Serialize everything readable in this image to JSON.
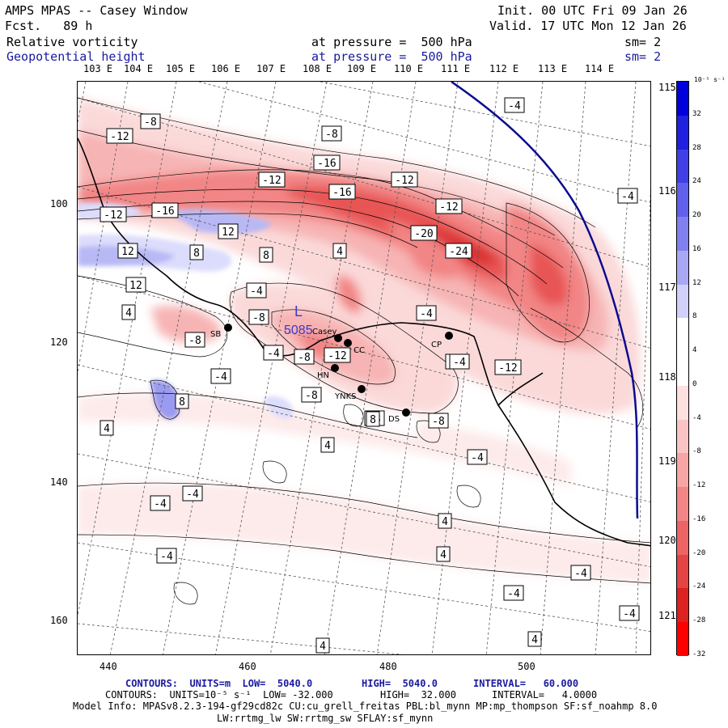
{
  "header": {
    "title": "AMPS MPAS -- Casey Window",
    "fcst": "Fcst.   89 h",
    "init": "Init. 00 UTC Fri 09 Jan 26",
    "valid": "Valid. 17 UTC Mon 12 Jan 26",
    "field1_name": "Relative vorticity",
    "field1_level": "at pressure =  500 hPa",
    "field1_sm": "sm= 2",
    "field2_name": "Geopotential height",
    "field2_level": "at pressure =  500 hPa",
    "field2_sm": "sm= 2"
  },
  "top_lon_labels": [
    "103 E",
    "104 E",
    "105 E",
    "106 E",
    "107 E",
    "108 E",
    "109 E",
    "110 E",
    "111 E",
    "112 E",
    "113 E",
    "114 E"
  ],
  "right_lon_labels": [
    "115 E",
    "116 E",
    "117 E",
    "118 E",
    "119 E",
    "120 E",
    "121 E"
  ],
  "y_axis": [
    "100",
    "120",
    "140",
    "160"
  ],
  "x_axis": [
    "440",
    "460",
    "480",
    "500"
  ],
  "colorbar": {
    "unit": "10⁻⁵ s⁻¹",
    "labels": [
      "32",
      "28",
      "24",
      "20",
      "16",
      "12",
      "8",
      "4",
      "0",
      "-4",
      "-8",
      "-12",
      "-16",
      "-20",
      "-24",
      "-28",
      "-32"
    ]
  },
  "contour_labels": [
    {
      "t": "-8"
    },
    {
      "t": "-12"
    },
    {
      "t": "-8"
    },
    {
      "t": "-16"
    },
    {
      "t": "-12"
    },
    {
      "t": "-16"
    },
    {
      "t": "-12"
    },
    {
      "t": "-12"
    },
    {
      "t": "-16"
    },
    {
      "t": "-12"
    },
    {
      "t": "-20"
    },
    {
      "t": "-24"
    },
    {
      "t": "-4"
    },
    {
      "t": "-4"
    },
    {
      "t": "12"
    },
    {
      "t": "12"
    },
    {
      "t": "8"
    },
    {
      "t": "8"
    },
    {
      "t": "4"
    },
    {
      "t": "12"
    },
    {
      "t": "-8"
    },
    {
      "t": "-4"
    },
    {
      "t": "-8"
    },
    {
      "t": "-8"
    },
    {
      "t": "-4"
    },
    {
      "t": "-12"
    },
    {
      "t": "-4"
    },
    {
      "t": "-12"
    },
    {
      "t": "-4"
    },
    {
      "t": "4"
    },
    {
      "t": "-8"
    },
    {
      "t": "8"
    },
    {
      "t": "4"
    },
    {
      "t": "-8"
    },
    {
      "t": "-8"
    },
    {
      "t": "4"
    },
    {
      "t": "-4"
    },
    {
      "t": "-4"
    },
    {
      "t": "-4"
    },
    {
      "t": "4"
    },
    {
      "t": "-4"
    },
    {
      "t": "4"
    },
    {
      "t": "4"
    },
    {
      "t": "-4"
    },
    {
      "t": "-4"
    },
    {
      "t": "-4"
    },
    {
      "t": "4"
    },
    {
      "t": "-4"
    },
    {
      "t": "-4"
    },
    {
      "t": "8"
    }
  ],
  "low": {
    "symbol": "L",
    "value": "5085"
  },
  "stations": [
    "SB",
    "Casey",
    "CC",
    "HN",
    "YNKS",
    "DS",
    "CP"
  ],
  "footer": {
    "c1_label": "CONTOURS:  UNITS=m  LOW=  5040.0",
    "c1_high": "HIGH=  5040.0",
    "c1_int": "INTERVAL=   60.000",
    "c2_label": "CONTOURS:  UNITS=10⁻⁵ s⁻¹  LOW= -32.000",
    "c2_high": "HIGH=  32.000",
    "c2_int": "INTERVAL=   4.0000",
    "model": "Model Info: MPASv8.2.3-194-gf29cd82c CU:cu_grell_freitas PBL:bl_mynn MP:mp_thompson SF:sf_noahmp 8.0",
    "model2": "LW:rrtmg_lw SW:rrtmg_sw SFLAY:sf_mynn"
  }
}
